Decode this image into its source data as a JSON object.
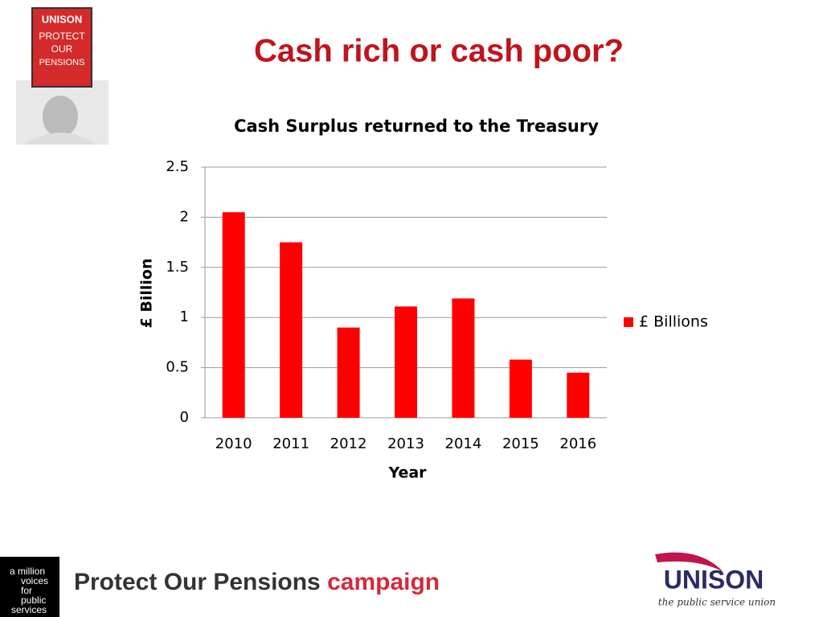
{
  "slide": {
    "title": "Cash rich or cash poor?",
    "placard": [
      "UNISON",
      "PROTECT",
      "OUR",
      "PENSIONS"
    ],
    "footer": {
      "badge": [
        "a million",
        "voices",
        "for",
        "public",
        "services"
      ],
      "campaign_name": "Protect Our Pensions",
      "campaign_word": "campaign",
      "logo": "UNISON",
      "tagline": "the public service union"
    }
  },
  "chart_data": {
    "type": "bar",
    "title": "Cash Surplus returned to the Treasury",
    "x_label": "Year",
    "y_label": "£ Billion",
    "categories": [
      "2010",
      "2011",
      "2012",
      "2013",
      "2014",
      "2015",
      "2016"
    ],
    "series": [
      {
        "name": "£ Billions",
        "color": "#ff0000",
        "values": [
          2.05,
          1.75,
          0.9,
          1.11,
          1.19,
          0.58,
          0.45
        ]
      }
    ],
    "ylim": [
      0,
      2.5
    ],
    "yticks": [
      0,
      0.5,
      1,
      1.5,
      2,
      2.5
    ],
    "grid": true,
    "legend": "right"
  }
}
